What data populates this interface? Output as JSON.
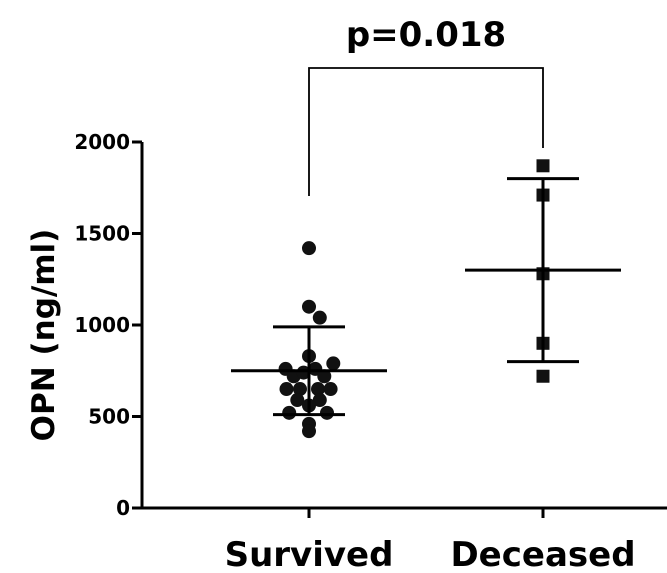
{
  "chart_data": {
    "type": "scatter",
    "ylabel": "OPN (ng/ml)",
    "xlabel": "",
    "title": "",
    "ylim": [
      0,
      2000
    ],
    "yticks": [
      0,
      500,
      1000,
      1500,
      2000
    ],
    "categories": [
      "Survived",
      "Deceased"
    ],
    "annotation": "p=0.018",
    "grid": false,
    "series": [
      {
        "category": "Survived",
        "marker": "circle",
        "points": [
          {
            "offset": 0.0,
            "value": 1420
          },
          {
            "offset": 0.0,
            "value": 1100
          },
          {
            "offset": 0.12,
            "value": 1040
          },
          {
            "offset": -0.26,
            "value": 760
          },
          {
            "offset": -0.17,
            "value": 720
          },
          {
            "offset": -0.06,
            "value": 740
          },
          {
            "offset": 0.07,
            "value": 760
          },
          {
            "offset": 0.17,
            "value": 720
          },
          {
            "offset": 0.27,
            "value": 790
          },
          {
            "offset": 0.0,
            "value": 830
          },
          {
            "offset": -0.25,
            "value": 650
          },
          {
            "offset": -0.1,
            "value": 650
          },
          {
            "offset": 0.1,
            "value": 650
          },
          {
            "offset": 0.24,
            "value": 650
          },
          {
            "offset": -0.13,
            "value": 590
          },
          {
            "offset": 0.12,
            "value": 590
          },
          {
            "offset": 0.0,
            "value": 560
          },
          {
            "offset": -0.22,
            "value": 520
          },
          {
            "offset": 0.2,
            "value": 520
          },
          {
            "offset": 0.0,
            "value": 460
          },
          {
            "offset": 0.0,
            "value": 420
          }
        ],
        "mean": 750,
        "sd_upper": 990,
        "sd_lower": 510
      },
      {
        "category": "Deceased",
        "marker": "square",
        "points": [
          {
            "offset": 0.0,
            "value": 1870
          },
          {
            "offset": 0.0,
            "value": 1710
          },
          {
            "offset": 0.0,
            "value": 1280
          },
          {
            "offset": 0.0,
            "value": 900
          },
          {
            "offset": 0.0,
            "value": 720
          }
        ],
        "mean": 1300,
        "sd_upper": 1800,
        "sd_lower": 800
      }
    ]
  }
}
